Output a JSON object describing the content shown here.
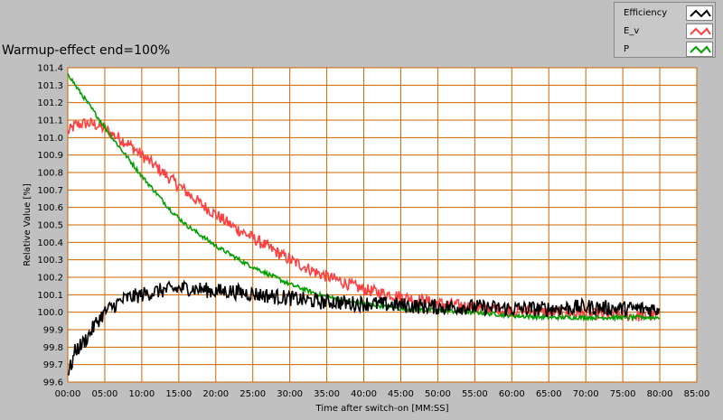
{
  "chart_data": {
    "type": "line",
    "title": "Warmup-effect end=100%",
    "xlabel": "Time after switch-on [MM:SS]",
    "ylabel": "Relative Value [%]",
    "xlim": [
      0,
      85
    ],
    "ylim": [
      99.6,
      101.4
    ],
    "x_unit": "minutes",
    "x_ticks": [
      "00:00",
      "05:00",
      "10:00",
      "15:00",
      "20:00",
      "25:00",
      "30:00",
      "35:00",
      "40:00",
      "45:00",
      "50:00",
      "55:00",
      "60:00",
      "65:00",
      "70:00",
      "75:00",
      "80:00",
      "85:00"
    ],
    "y_ticks": [
      "99.6",
      "99.7",
      "99.8",
      "99.9",
      "100.0",
      "100.1",
      "100.2",
      "100.3",
      "100.4",
      "100.5",
      "100.6",
      "100.7",
      "100.8",
      "100.9",
      "101.0",
      "101.1",
      "101.2",
      "101.3",
      "101.4"
    ],
    "grid": true,
    "legend_position": "top-right",
    "background_color": "#ffffff",
    "grid_color": "#cc6600",
    "series": [
      {
        "name": "Efficiency",
        "color": "#000000",
        "x": [
          0,
          0.5,
          1,
          2,
          3,
          4,
          5,
          6,
          7,
          8,
          10,
          12,
          14,
          16,
          18,
          20,
          22,
          24,
          26,
          28,
          30,
          32,
          34,
          36,
          38,
          40,
          45,
          50,
          55,
          60,
          65,
          70,
          75,
          80
        ],
        "values": [
          99.65,
          99.7,
          99.78,
          99.82,
          99.88,
          99.95,
          100.0,
          100.03,
          100.06,
          100.08,
          100.1,
          100.12,
          100.13,
          100.14,
          100.13,
          100.12,
          100.12,
          100.11,
          100.1,
          100.09,
          100.08,
          100.07,
          100.06,
          100.06,
          100.05,
          100.05,
          100.04,
          100.03,
          100.03,
          100.02,
          100.02,
          100.03,
          100.02,
          100.02
        ]
      },
      {
        "name": "E_v",
        "color": "#ff4040",
        "x": [
          0,
          1,
          2,
          3,
          4,
          5,
          6,
          8,
          10,
          12,
          14,
          16,
          18,
          20,
          22,
          24,
          26,
          28,
          30,
          32,
          34,
          36,
          38,
          40,
          45,
          50,
          55,
          60,
          65,
          70,
          75,
          80
        ],
        "values": [
          101.03,
          101.07,
          101.08,
          101.08,
          101.07,
          101.05,
          101.02,
          100.97,
          100.9,
          100.83,
          100.76,
          100.69,
          100.62,
          100.56,
          100.5,
          100.45,
          100.4,
          100.35,
          100.3,
          100.26,
          100.22,
          100.19,
          100.16,
          100.13,
          100.09,
          100.05,
          100.03,
          100.01,
          100.0,
          99.99,
          99.98,
          99.98
        ]
      },
      {
        "name": "P",
        "color": "#00a000",
        "x": [
          0,
          1,
          2,
          3,
          4,
          5,
          6,
          8,
          10,
          12,
          14,
          16,
          18,
          20,
          22,
          24,
          26,
          28,
          30,
          32,
          34,
          36,
          38,
          40,
          45,
          50,
          55,
          60,
          65,
          70,
          75,
          80
        ],
        "values": [
          101.37,
          101.3,
          101.24,
          101.18,
          101.12,
          101.06,
          101.0,
          100.89,
          100.78,
          100.68,
          100.58,
          100.5,
          100.44,
          100.38,
          100.33,
          100.28,
          100.24,
          100.2,
          100.16,
          100.13,
          100.1,
          100.08,
          100.06,
          100.05,
          100.02,
          100.01,
          100.0,
          99.98,
          99.97,
          99.97,
          99.97,
          99.97
        ]
      }
    ]
  }
}
